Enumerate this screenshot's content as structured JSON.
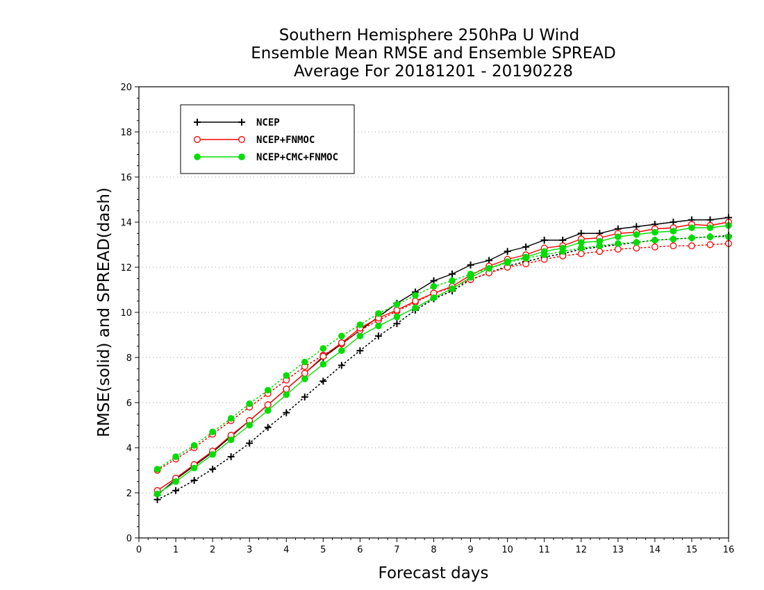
{
  "chart_data": {
    "type": "line",
    "title_lines": [
      "Southern Hemisphere 250hPa U Wind",
      "Ensemble Mean RMSE and Ensemble SPREAD",
      "Average For 20181201 - 20190228"
    ],
    "xlabel": "Forecast days",
    "ylabel": "RMSE(solid) and SPREAD(dash)",
    "xlim": [
      0,
      16
    ],
    "ylim": [
      0,
      20
    ],
    "xticks": [
      "0",
      "1",
      "2",
      "3",
      "4",
      "5",
      "6",
      "7",
      "8",
      "9",
      "10",
      "11",
      "12",
      "13",
      "14",
      "15",
      "16"
    ],
    "yticks": [
      "0",
      "2",
      "4",
      "6",
      "8",
      "10",
      "12",
      "14",
      "16",
      "18",
      "20"
    ],
    "grid": "horizontal dotted",
    "legend_position": "top-left",
    "x": [
      0.5,
      1,
      1.5,
      2,
      2.5,
      3,
      3.5,
      4,
      4.5,
      5,
      5.5,
      6,
      6.5,
      7,
      7.5,
      8,
      8.5,
      9,
      9.5,
      10,
      10.5,
      11,
      11.5,
      12,
      12.5,
      13,
      13.5,
      14,
      14.5,
      15,
      15.5,
      16
    ],
    "series": [
      {
        "name": "NCEP",
        "color": "#000000",
        "marker": "plus",
        "rmse": [
          1.9,
          2.6,
          3.2,
          3.8,
          4.5,
          5.2,
          5.9,
          6.6,
          7.3,
          8.0,
          8.6,
          9.2,
          9.8,
          10.4,
          10.9,
          11.4,
          11.7,
          12.1,
          12.3,
          12.7,
          12.9,
          13.2,
          13.2,
          13.5,
          13.5,
          13.7,
          13.8,
          13.9,
          14.0,
          14.1,
          14.1,
          14.2
        ],
        "spread": [
          1.7,
          2.1,
          2.55,
          3.05,
          3.6,
          4.2,
          4.9,
          5.55,
          6.25,
          6.95,
          7.65,
          8.3,
          8.95,
          9.5,
          10.1,
          10.6,
          10.95,
          11.45,
          11.75,
          12.05,
          12.25,
          12.45,
          12.6,
          12.8,
          12.9,
          13.0,
          13.1,
          13.2,
          13.25,
          13.3,
          13.35,
          13.4
        ]
      },
      {
        "name": "NCEP+FNMOC",
        "color": "#ff0000",
        "marker": "open-circle",
        "rmse": [
          2.1,
          2.65,
          3.25,
          3.85,
          4.55,
          5.2,
          5.9,
          6.6,
          7.3,
          8.05,
          8.65,
          9.3,
          9.75,
          10.1,
          10.5,
          10.85,
          11.15,
          11.65,
          12.05,
          12.35,
          12.55,
          12.85,
          12.95,
          13.25,
          13.3,
          13.5,
          13.55,
          13.7,
          13.75,
          13.9,
          13.85,
          14.0
        ],
        "spread": [
          3.0,
          3.5,
          4.0,
          4.6,
          5.2,
          5.8,
          6.4,
          7.0,
          7.6,
          8.1,
          8.6,
          9.2,
          9.65,
          10.05,
          10.45,
          10.85,
          11.1,
          11.45,
          11.75,
          12.0,
          12.15,
          12.35,
          12.5,
          12.6,
          12.7,
          12.8,
          12.85,
          12.9,
          12.95,
          12.95,
          13.0,
          13.05
        ]
      },
      {
        "name": "NCEP+CMC+FNMOC",
        "color": "#00dd00",
        "marker": "filled-circle",
        "rmse": [
          1.95,
          2.5,
          3.1,
          3.7,
          4.35,
          5.0,
          5.65,
          6.35,
          7.05,
          7.7,
          8.3,
          8.95,
          9.4,
          9.8,
          10.2,
          10.65,
          11.05,
          11.55,
          11.95,
          12.25,
          12.45,
          12.7,
          12.85,
          13.1,
          13.15,
          13.35,
          13.45,
          13.55,
          13.6,
          13.75,
          13.75,
          13.85
        ],
        "spread": [
          3.05,
          3.6,
          4.1,
          4.7,
          5.3,
          5.95,
          6.55,
          7.2,
          7.8,
          8.4,
          8.95,
          9.45,
          9.95,
          10.35,
          10.75,
          11.15,
          11.4,
          11.7,
          11.95,
          12.2,
          12.4,
          12.55,
          12.7,
          12.85,
          12.95,
          13.05,
          13.1,
          13.2,
          13.25,
          13.3,
          13.35,
          13.35
        ]
      }
    ]
  }
}
